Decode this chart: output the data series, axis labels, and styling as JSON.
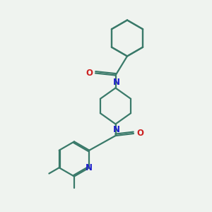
{
  "bg_color": "#eff3ef",
  "bond_color": "#3a7a6a",
  "N_color": "#2020cc",
  "O_color": "#cc2020",
  "line_width": 1.6,
  "font_size_atom": 8.5,
  "figsize": [
    3.0,
    3.0
  ],
  "dpi": 100,
  "xlim": [
    0,
    10
  ],
  "ylim": [
    0,
    10
  ]
}
